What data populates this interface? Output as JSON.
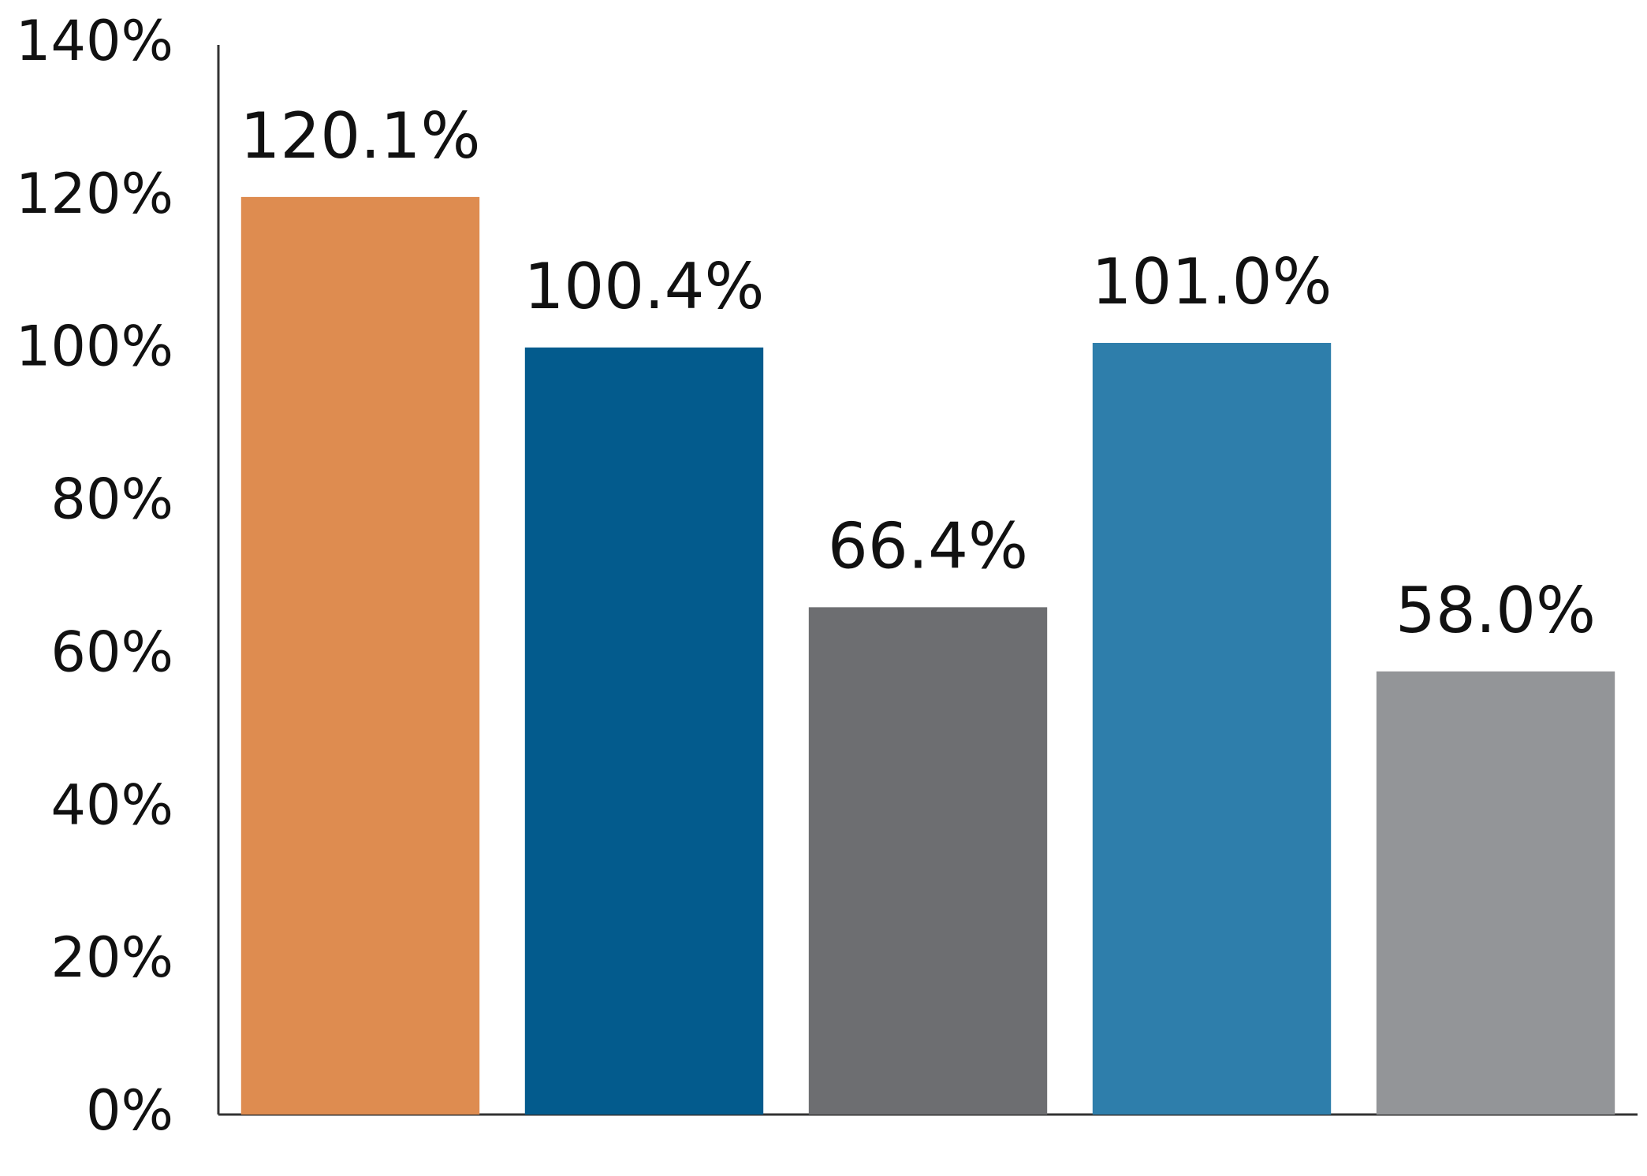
{
  "chart_data": {
    "type": "bar",
    "categories": [
      null,
      null,
      null,
      null,
      null
    ],
    "values": [
      120.1,
      100.4,
      66.4,
      101.0,
      58.0
    ],
    "value_labels": [
      "120.1%",
      "100.4%",
      "66.4%",
      "101.0%",
      "58.0%"
    ],
    "colors": [
      "#de8c50",
      "#035b8d",
      "#6d6e71",
      "#2e7eab",
      "#939598"
    ],
    "ylim": [
      0,
      140
    ],
    "yticks": [
      {
        "value": 0,
        "label": "0%"
      },
      {
        "value": 20,
        "label": "20%"
      },
      {
        "value": 40,
        "label": "40%"
      },
      {
        "value": 60,
        "label": "60%"
      },
      {
        "value": 80,
        "label": "80%"
      },
      {
        "value": 100,
        "label": "100%"
      },
      {
        "value": 120,
        "label": "120%"
      },
      {
        "value": 140,
        "label": "140%"
      }
    ],
    "grid": false
  }
}
